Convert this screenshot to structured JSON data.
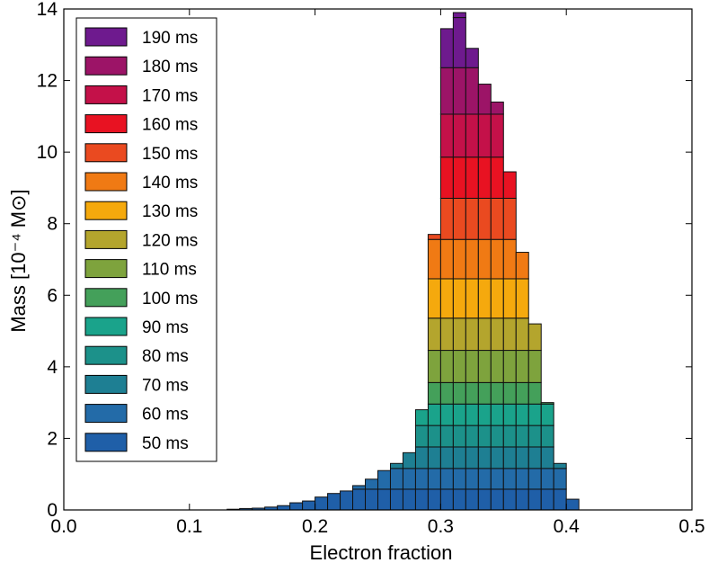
{
  "chart_data": {
    "type": "bar",
    "subtype": "stacked-histogram",
    "xlabel": "Electron fraction",
    "ylabel": "Mass [10⁻⁴ M⊙]",
    "xlim": [
      0.0,
      0.5
    ],
    "ylim": [
      0,
      14
    ],
    "x_ticks": [
      "0.0",
      "0.1",
      "0.2",
      "0.3",
      "0.4",
      "0.5"
    ],
    "y_ticks": [
      "0",
      "2",
      "4",
      "6",
      "8",
      "10",
      "12",
      "14"
    ],
    "bin_width": 0.01,
    "bin_left_edges": [
      0.13,
      0.14,
      0.15,
      0.16,
      0.17,
      0.18,
      0.19,
      0.2,
      0.21,
      0.22,
      0.23,
      0.24,
      0.25,
      0.26,
      0.27,
      0.28,
      0.29,
      0.3,
      0.31,
      0.32,
      0.33,
      0.34,
      0.35,
      0.36,
      0.37,
      0.38,
      0.39,
      0.4
    ],
    "bin_totals": [
      0.02,
      0.04,
      0.05,
      0.08,
      0.12,
      0.2,
      0.25,
      0.36,
      0.46,
      0.53,
      0.68,
      0.86,
      1.1,
      1.3,
      1.6,
      2.8,
      7.7,
      13.45,
      13.9,
      12.9,
      11.9,
      11.4,
      9.45,
      7.2,
      5.2,
      3.0,
      1.3,
      0.3
    ],
    "layer_increments": [
      0.58,
      0.58,
      0.6,
      0.6,
      0.6,
      0.6,
      0.9,
      0.9,
      1.1,
      1.1,
      1.15,
      1.15,
      1.2,
      1.3,
      1.4
    ],
    "legend_position": "upper-left",
    "series": [
      {
        "name": "50 ms",
        "color": "#1f5fa8"
      },
      {
        "name": "60 ms",
        "color": "#236ba8"
      },
      {
        "name": "70 ms",
        "color": "#1e7f93"
      },
      {
        "name": "80 ms",
        "color": "#1c918a"
      },
      {
        "name": "90 ms",
        "color": "#1aa38b"
      },
      {
        "name": "100 ms",
        "color": "#44a05a"
      },
      {
        "name": "110 ms",
        "color": "#7ea33d"
      },
      {
        "name": "120 ms",
        "color": "#b4a52d"
      },
      {
        "name": "130 ms",
        "color": "#f5a90d"
      },
      {
        "name": "140 ms",
        "color": "#f07a14"
      },
      {
        "name": "150 ms",
        "color": "#ea4a20"
      },
      {
        "name": "160 ms",
        "color": "#e81222"
      },
      {
        "name": "170 ms",
        "color": "#c41149"
      },
      {
        "name": "180 ms",
        "color": "#9c1467"
      },
      {
        "name": "190 ms",
        "color": "#6e1a8e"
      }
    ]
  }
}
